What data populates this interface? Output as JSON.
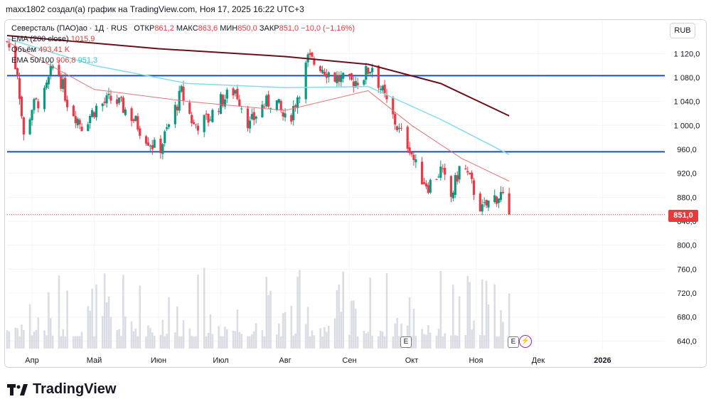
{
  "header": {
    "attribution": "maxx1802 создал(а) график на TradingView.com, Ноя 17, 2025 16:22 UTC+3"
  },
  "legend": {
    "symbol": "Северсталь (ПАО)ао · 1Д · RUS",
    "open_label": "ОТКР",
    "open": "861,2",
    "high_label": "МАКС",
    "high": "863,6",
    "low_label": "МИН",
    "low": "850,0",
    "close_label": "ЗАКР",
    "close": "851,0",
    "change": "−10,0 (−1,16%)",
    "ema200_label": "EMA (200 close)",
    "ema200_value": "1015,9",
    "volume_label": "Объём",
    "volume_value": "493,41 K",
    "ema50100_label": "EMA 50/100",
    "ema50_value": "906,8",
    "ema100_value": "951,3"
  },
  "currency": "RUB",
  "last_price_tag": "851,0",
  "events": {
    "earnings": "E",
    "dividend": "⚡"
  },
  "brand": "TradingView",
  "colors": {
    "up": "#089981",
    "down": "#f23645",
    "ema50": "#e57373",
    "ema100": "#80deea",
    "ema200": "#6b0f1a",
    "hline": "#1e4fb5",
    "volume": "#d1d4dc"
  },
  "chart_data": {
    "type": "candlestick",
    "title": "Северсталь (ПАО)ао · 1Д · RUS",
    "x_tick_labels": [
      "Апр",
      "Май",
      "Июн",
      "Июл",
      "Авг",
      "Сен",
      "Окт",
      "Ноя",
      "Дек",
      "2026"
    ],
    "y_tick_labels": [
      "1 120,0",
      "1 080,0",
      "1 040,0",
      "1 000,0",
      "960,0",
      "920,0",
      "880,0",
      "840,0",
      "800,0",
      "760,0",
      "720,0",
      "680,0",
      "640,0"
    ],
    "ylim": [
      625,
      1150
    ],
    "horizontal_levels": [
      1083,
      956
    ],
    "last_price": 851.0,
    "price_path": [
      [
        "2025-03-20",
        1140
      ],
      [
        "2025-03-25",
        1090
      ],
      [
        "2025-03-28",
        980
      ],
      [
        "2025-04-01",
        1030
      ],
      [
        "2025-04-07",
        1050
      ],
      [
        "2025-04-12",
        1110
      ],
      [
        "2025-04-18",
        1040
      ],
      [
        "2025-04-25",
        1000
      ],
      [
        "2025-05-02",
        1030
      ],
      [
        "2025-05-10",
        1045
      ],
      [
        "2025-05-18",
        1020
      ],
      [
        "2025-05-25",
        985
      ],
      [
        "2025-06-01",
        955
      ],
      [
        "2025-06-06",
        1000
      ],
      [
        "2025-06-12",
        1055
      ],
      [
        "2025-06-18",
        1000
      ],
      [
        "2025-06-25",
        1010
      ],
      [
        "2025-07-01",
        1040
      ],
      [
        "2025-07-08",
        1060
      ],
      [
        "2025-07-15",
        1000
      ],
      [
        "2025-07-20",
        1030
      ],
      [
        "2025-07-27",
        1045
      ],
      [
        "2025-08-02",
        1000
      ],
      [
        "2025-08-08",
        1060
      ],
      [
        "2025-08-12",
        1110
      ],
      [
        "2025-08-18",
        1100
      ],
      [
        "2025-08-25",
        1080
      ],
      [
        "2025-09-01",
        1070
      ],
      [
        "2025-09-07",
        1080
      ],
      [
        "2025-09-12",
        1100
      ],
      [
        "2025-09-18",
        1045
      ],
      [
        "2025-09-25",
        990
      ],
      [
        "2025-09-30",
        965
      ],
      [
        "2025-10-04",
        920
      ],
      [
        "2025-10-09",
        900
      ],
      [
        "2025-10-15",
        925
      ],
      [
        "2025-10-20",
        880
      ],
      [
        "2025-10-25",
        940
      ],
      [
        "2025-10-30",
        900
      ],
      [
        "2025-11-04",
        858
      ],
      [
        "2025-11-09",
        878
      ],
      [
        "2025-11-13",
        884
      ],
      [
        "2025-11-17",
        851
      ]
    ],
    "series": [
      {
        "name": "EMA (200 close)",
        "points": [
          [
            "2025-03-20",
            1150
          ],
          [
            "2025-06-01",
            1128
          ],
          [
            "2025-08-01",
            1115
          ],
          [
            "2025-09-10",
            1102
          ],
          [
            "2025-10-15",
            1070
          ],
          [
            "2025-11-17",
            1015.9
          ]
        ]
      },
      {
        "name": "EMA 100",
        "points": [
          [
            "2025-03-20",
            1145
          ],
          [
            "2025-05-01",
            1100
          ],
          [
            "2025-06-15",
            1070
          ],
          [
            "2025-08-01",
            1063
          ],
          [
            "2025-09-10",
            1065
          ],
          [
            "2025-10-15",
            1010
          ],
          [
            "2025-11-17",
            951.3
          ]
        ]
      },
      {
        "name": "EMA 50",
        "points": [
          [
            "2025-03-20",
            1140
          ],
          [
            "2025-05-01",
            1060
          ],
          [
            "2025-06-15",
            1040
          ],
          [
            "2025-08-01",
            1025
          ],
          [
            "2025-09-10",
            1058
          ],
          [
            "2025-10-01",
            1000
          ],
          [
            "2025-10-25",
            945
          ],
          [
            "2025-11-17",
            906.8
          ]
        ]
      }
    ],
    "volume_series": {
      "name": "Объём",
      "last": "493,41 K"
    }
  }
}
